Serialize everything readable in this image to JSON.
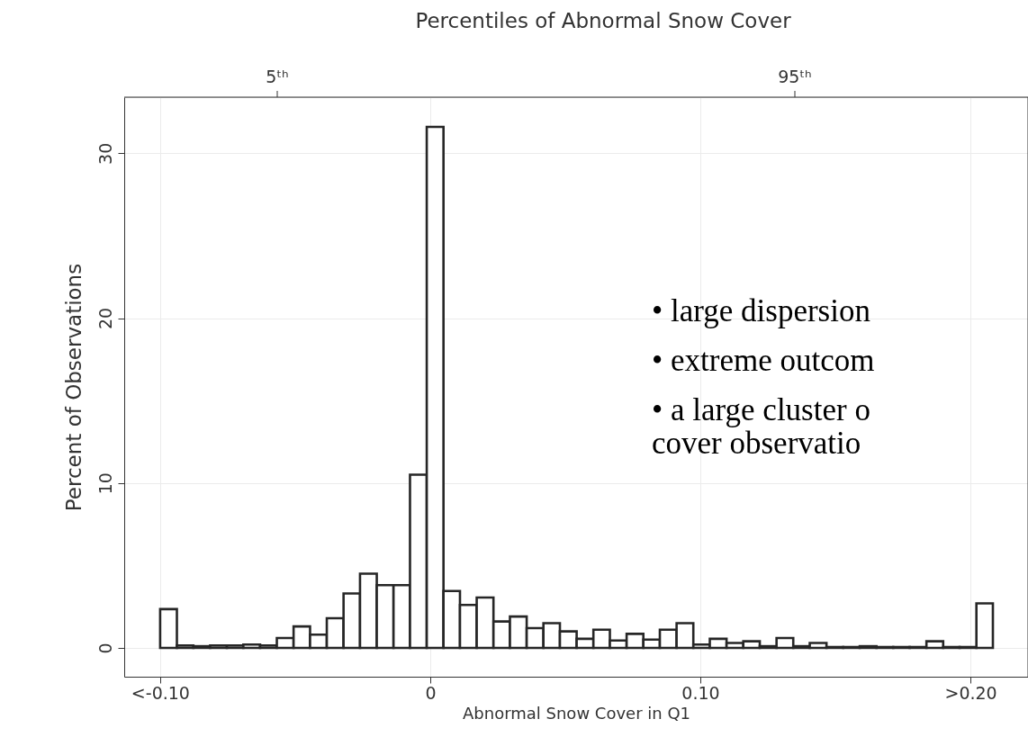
{
  "chart_data": {
    "type": "histogram",
    "xlabel": "Abnormal Snow Cover in Q1",
    "ylabel": "Percent of Observations",
    "bins": [
      -0.1,
      -0.0938,
      -0.0877,
      -0.0815,
      -0.0753,
      -0.0692,
      -0.063,
      -0.0568,
      -0.0506,
      -0.0445,
      -0.0383,
      -0.0321,
      -0.026,
      -0.0198,
      -0.0136,
      -0.0075,
      -0.0013,
      0.0049,
      0.011,
      0.0172,
      0.0234,
      0.0295,
      0.0357,
      0.0419,
      0.048,
      0.0542,
      0.0604,
      0.0665,
      0.0727,
      0.0789,
      0.085,
      0.0912,
      0.0974,
      0.1035,
      0.1097,
      0.1159,
      0.122,
      0.1282,
      0.1344,
      0.1405,
      0.1467,
      0.1529,
      0.159,
      0.1652,
      0.1714,
      0.1775,
      0.1837,
      0.1899,
      0.196,
      0.2022,
      0.2083
    ],
    "values": [
      2.35,
      0.15,
      0.1,
      0.15,
      0.15,
      0.2,
      0.15,
      0.6,
      1.3,
      0.8,
      1.8,
      3.3,
      4.5,
      3.8,
      3.8,
      10.5,
      31.6,
      3.45,
      2.6,
      3.05,
      1.6,
      1.9,
      1.2,
      1.5,
      1.0,
      0.55,
      1.1,
      0.45,
      0.85,
      0.5,
      1.1,
      1.5,
      0.2,
      0.55,
      0.3,
      0.4,
      0.1,
      0.6,
      0.1,
      0.3,
      0.05,
      0.05,
      0.1,
      0.05,
      0.05,
      0.05,
      0.4,
      0.05,
      0.05,
      2.7
    ],
    "color": "#ffffff",
    "xlim": [
      -0.1133,
      0.2213
    ],
    "ylim": [
      -1.75,
      33.4
    ],
    "xticks": [
      {
        "value": -0.1,
        "label": "<-0.10"
      },
      {
        "value": 0,
        "label": "0"
      },
      {
        "value": 0.1,
        "label": "0.10"
      },
      {
        "value": 0.2,
        "label": ">0.20"
      }
    ],
    "yticks": [
      0,
      10,
      20,
      30
    ],
    "grid": true,
    "annotations": [
      "Percentiles of Abnormal Snow Cover",
      "5ᵗʰ",
      "95ᵗʰ",
      "•   large dispersion",
      "•   extreme outcom",
      "•   a large cluster o",
      "      cover observatio"
    ]
  }
}
